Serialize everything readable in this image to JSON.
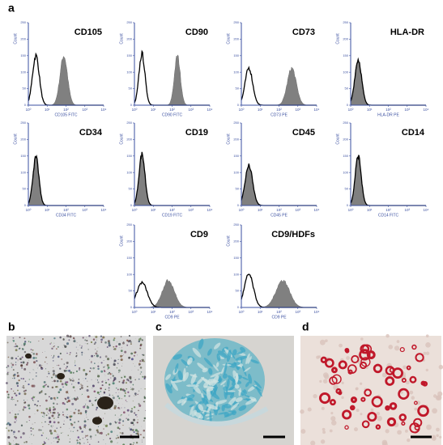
{
  "panel_a": {
    "label": "a",
    "y_label": "Count",
    "y_ticks": [
      0,
      50,
      100,
      150,
      200,
      250
    ],
    "x_ticks": [
      "10⁰",
      "10¹",
      "10²",
      "10³",
      "10⁴"
    ],
    "plots": [
      {
        "title": "CD105",
        "x_label": "CD105 FITC"
      },
      {
        "title": "CD90",
        "x_label": "CD90 FITC"
      },
      {
        "title": "CD73",
        "x_label": "CD73 PE"
      },
      {
        "title": "HLA-DR",
        "x_label": "HLA-DR PE"
      },
      {
        "title": "CD34",
        "x_label": "CD34 FITC"
      },
      {
        "title": "CD19",
        "x_label": "CD19 FITC"
      },
      {
        "title": "CD45",
        "x_label": "CD45 PE"
      },
      {
        "title": "CD14",
        "x_label": "CD14 FITC"
      },
      {
        "title": "CD9",
        "x_label": "CD9 PE"
      },
      {
        "title": "CD9/HDFs",
        "x_label": "CD9 PE"
      }
    ]
  },
  "panel_b": {
    "label": "b"
  },
  "panel_c": {
    "label": "c"
  },
  "panel_d": {
    "label": "d"
  }
}
